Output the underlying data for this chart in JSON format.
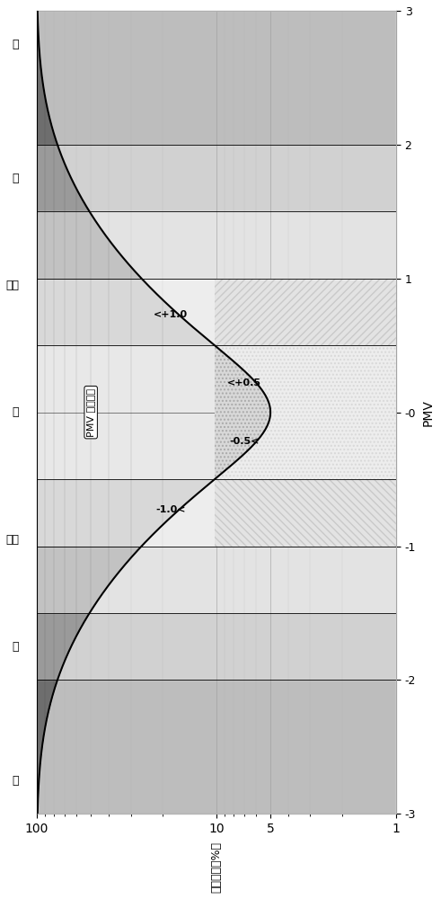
{
  "figsize": [
    4.91,
    10.0
  ],
  "dpi": 100,
  "ppd_min": 1,
  "ppd_max": 100,
  "pmv_min": -3,
  "pmv_max": 3,
  "curve_color": "#000000",
  "curve_linewidth": 1.5,
  "bg_dark": "#6e6e6e",
  "bg_medium": "#9a9a9a",
  "bg_light": "#c2c2c2",
  "bg_lighter": "#d8d8d8",
  "bg_lightest": "#e8e8e8",
  "hatch_diag_fc": "#c2c2c2",
  "hatch_dot_fc": "#d8d8d8",
  "hatch_diag_ec": "#888888",
  "hatch_dot_ec": "#aaaaaa",
  "grid_color": "#222222",
  "xlabel": "不满意度［%］",
  "ylabel": "PMV",
  "chinese_labels": [
    "热",
    "暖",
    "稍暖",
    "中",
    "稍凉",
    "凉",
    "冷"
  ],
  "chinese_y": [
    2.75,
    1.75,
    0.95,
    0.0,
    -0.95,
    -1.75,
    -2.75
  ],
  "annot_plus10": "<+1.0",
  "annot_plus05": "<+0.5",
  "annot_minus05": "-0.5<",
  "annot_minus10": "-1.0<",
  "pmv_label": "PMV 区域扩张",
  "ytick_positions": [
    -3,
    -2,
    -1,
    0,
    1,
    2,
    3
  ],
  "ytick_labels": [
    "-3",
    "-2",
    "-1",
    "-0",
    "1",
    "2",
    "3"
  ],
  "xtick_positions": [
    1,
    5,
    10,
    100
  ],
  "xtick_labels": [
    "1",
    "5",
    "10",
    "100"
  ]
}
